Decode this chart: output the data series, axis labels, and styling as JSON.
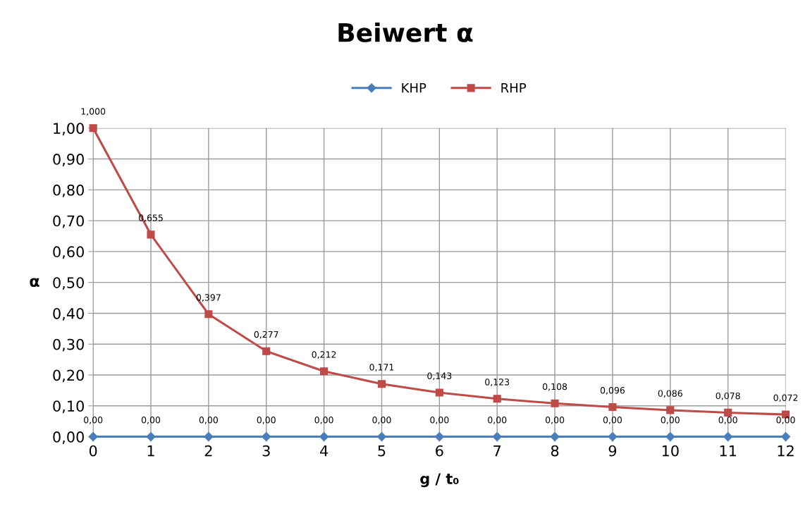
{
  "chart_data": {
    "type": "line",
    "title": "Beiwert α",
    "xlabel": "g / t₀",
    "ylabel": "α",
    "x": [
      0,
      1,
      2,
      3,
      4,
      5,
      6,
      7,
      8,
      9,
      10,
      11,
      12
    ],
    "series": [
      {
        "name": "KHP",
        "color": "#4a7ebb",
        "marker": "diamond",
        "values": [
          0,
          0,
          0,
          0,
          0,
          0,
          0,
          0,
          0,
          0,
          0,
          0,
          0
        ],
        "value_labels": [
          "0,00",
          "0,00",
          "0,00",
          "0,00",
          "0,00",
          "0,00",
          "0,00",
          "0,00",
          "0,00",
          "0,00",
          "0,00",
          "0,00",
          "0,00"
        ]
      },
      {
        "name": "RHP",
        "color": "#be4b48",
        "marker": "square",
        "values": [
          1.0,
          0.655,
          0.397,
          0.277,
          0.212,
          0.171,
          0.143,
          0.123,
          0.108,
          0.096,
          0.086,
          0.078,
          0.072
        ],
        "value_labels": [
          "1,000",
          "0,655",
          "0,397",
          "0,277",
          "0,212",
          "0,171",
          "0,143",
          "0,123",
          "0,108",
          "0,096",
          "0,086",
          "0,078",
          "0,072"
        ]
      }
    ],
    "xlim": [
      0,
      12
    ],
    "xticks": [
      0,
      1,
      2,
      3,
      4,
      5,
      6,
      7,
      8,
      9,
      10,
      11,
      12
    ],
    "ylim": [
      0,
      1
    ],
    "yticks": [
      {
        "value": 0,
        "label": "0,00"
      },
      {
        "value": 0.1,
        "label": "0,10"
      },
      {
        "value": 0.2,
        "label": "0,20"
      },
      {
        "value": 0.3,
        "label": "0,30"
      },
      {
        "value": 0.4,
        "label": "0,40"
      },
      {
        "value": 0.5,
        "label": "0,50"
      },
      {
        "value": 0.6,
        "label": "0,60"
      },
      {
        "value": 0.7,
        "label": "0,70"
      },
      {
        "value": 0.8,
        "label": "0,80"
      },
      {
        "value": 0.9,
        "label": "0,90"
      },
      {
        "value": 1,
        "label": "1,00"
      }
    ],
    "grid": true,
    "legend": "top",
    "line_style": "solid"
  }
}
